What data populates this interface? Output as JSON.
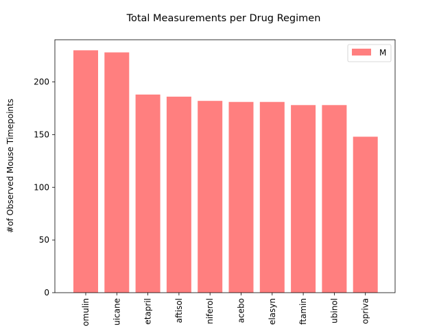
{
  "chart_data": {
    "type": "bar",
    "title": "Total Measurements per Drug Regimen",
    "xlabel": "",
    "ylabel": "#of Observed Mouse Timepoints",
    "categories": [
      "omulin",
      "uicane",
      "etapril",
      "aftisol",
      "niferol",
      "acebo",
      "elasyn",
      "ftamin",
      "ubinol",
      "opriva"
    ],
    "series": [
      {
        "name": "M",
        "values": [
          230,
          228,
          188,
          186,
          182,
          181,
          181,
          178,
          178,
          148
        ]
      }
    ],
    "ylim": [
      0,
      240
    ],
    "yticks": [
      0,
      50,
      100,
      150,
      200
    ],
    "bar_color": "#ff7f7f",
    "grid": false,
    "legend_position": "top-right"
  }
}
